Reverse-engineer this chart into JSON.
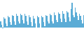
{
  "values": [
    5,
    2,
    -1,
    8,
    7,
    3,
    1,
    9,
    8,
    4,
    2,
    10,
    9,
    5,
    2,
    11,
    9,
    5,
    3,
    11,
    10,
    6,
    3,
    11,
    9,
    5,
    2,
    10,
    8,
    4,
    1,
    9,
    7,
    3,
    0,
    9,
    8,
    3,
    0,
    9,
    8,
    4,
    1,
    10,
    9,
    5,
    3,
    11,
    10,
    5,
    3,
    12,
    10,
    6,
    4,
    12,
    11,
    7,
    4,
    13,
    11,
    7,
    4,
    13,
    12,
    8,
    5,
    15,
    20,
    10,
    8,
    16,
    12,
    9,
    6,
    11,
    9,
    6,
    3,
    10
  ],
  "bar_color": "#5bacd6",
  "bg_color": "#ffffff",
  "ylim_min": -3,
  "ylim_max": 22
}
